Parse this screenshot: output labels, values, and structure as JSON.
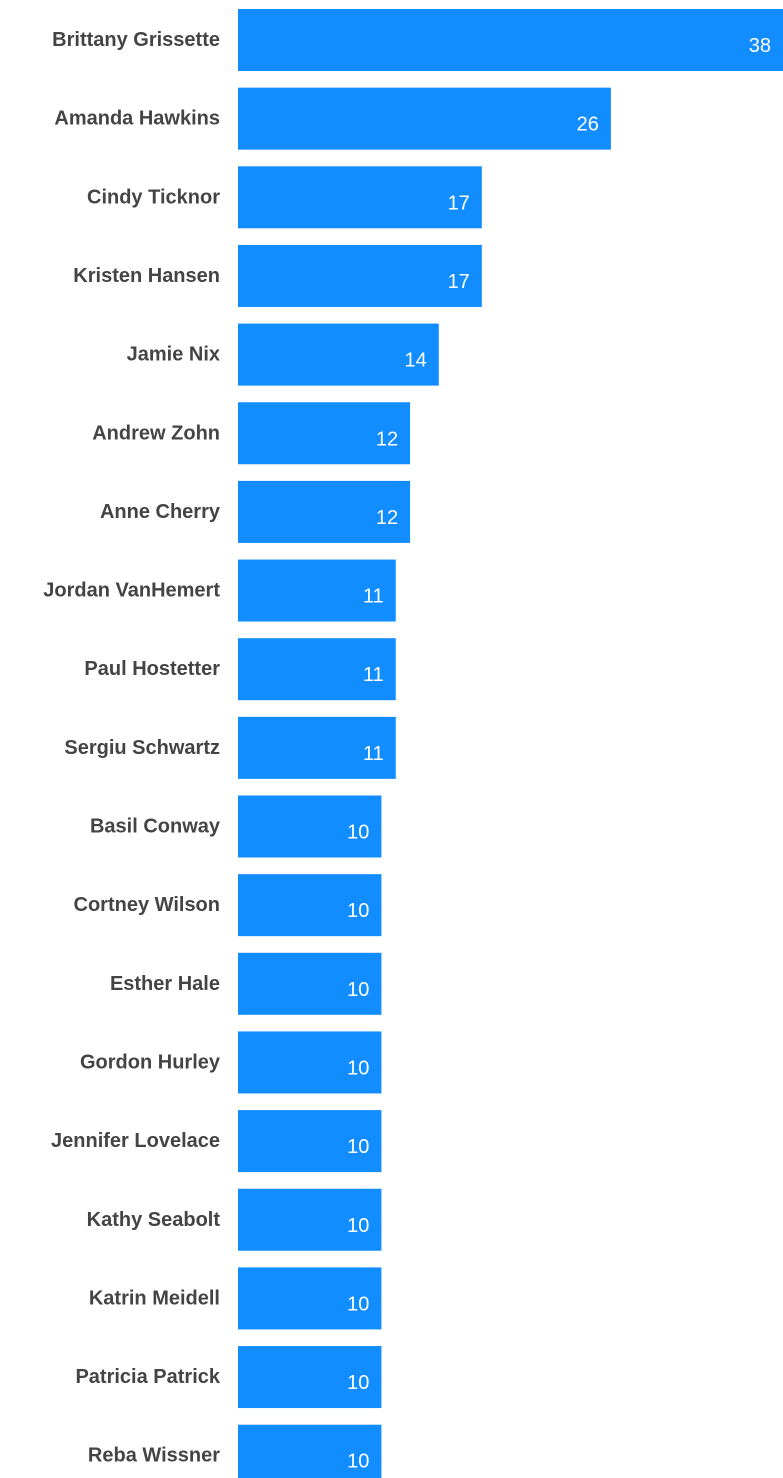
{
  "chart_data": {
    "type": "bar",
    "orientation": "horizontal",
    "categories": [
      "Brittany Grissette",
      "Amanda Hawkins",
      "Cindy Ticknor",
      "Kristen Hansen",
      "Jamie Nix",
      "Andrew Zohn",
      "Anne Cherry",
      "Jordan VanHemert",
      "Paul Hostetter",
      "Sergiu Schwartz",
      "Basil Conway",
      "Cortney Wilson",
      "Esther Hale",
      "Gordon Hurley",
      "Jennifer Lovelace",
      "Kathy Seabolt",
      "Katrin Meidell",
      "Patricia Patrick",
      "Reba Wissner"
    ],
    "values": [
      38,
      26,
      17,
      17,
      14,
      12,
      12,
      11,
      11,
      11,
      10,
      10,
      10,
      10,
      10,
      10,
      10,
      10,
      10
    ],
    "xlim": [
      0,
      38
    ],
    "bar_color": "#118DFF",
    "value_label_color": "#FFFFFF",
    "category_label_color": "#444444",
    "grid": false,
    "legend": "none"
  }
}
